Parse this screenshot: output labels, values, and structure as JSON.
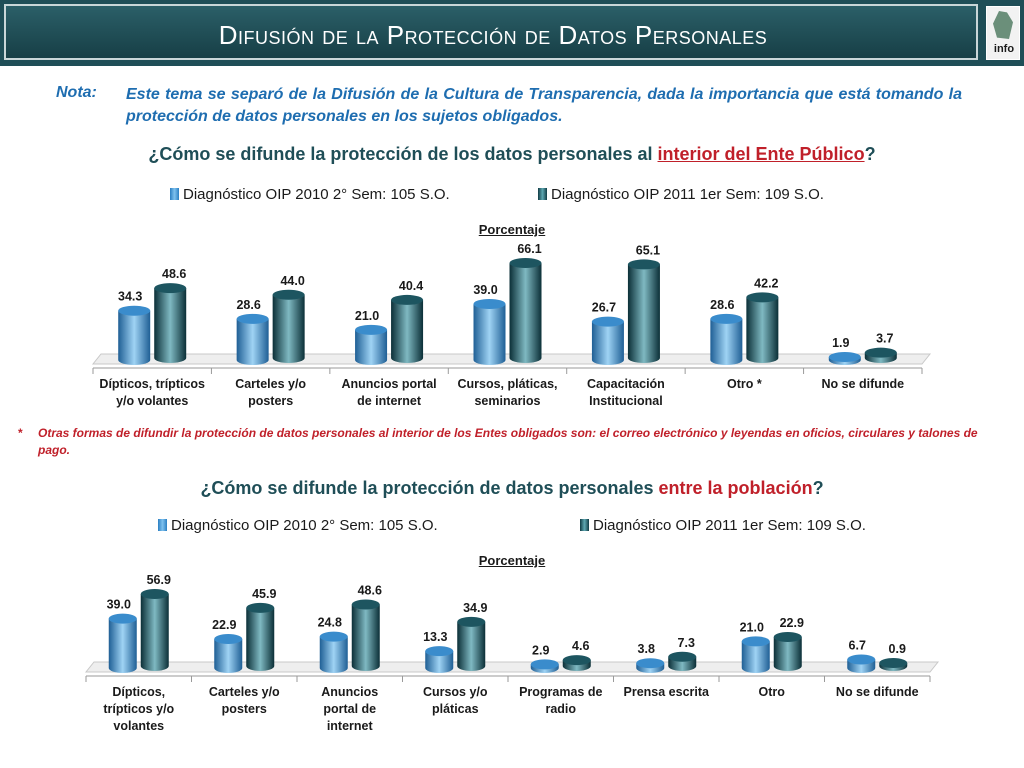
{
  "header": {
    "title": "Difusión de la Protección de Datos Personales",
    "logo_text": "info",
    "logo_icon": "info-df-logo"
  },
  "note": {
    "label": "Nota:",
    "text": "Este tema se separó de la Difusión de la Cultura de Transparencia, dada la importancia que está tomando la protección de datos personales en los sujetos obligados."
  },
  "chart1_question": {
    "before": "¿Cómo se difunde la protección de los datos personales al ",
    "highlight": "interior del Ente Público",
    "after": "?"
  },
  "chart2_question": {
    "before": "¿Cómo se difunde la protección de datos personales ",
    "highlight": "entre la población",
    "after": "?"
  },
  "footnote": {
    "star": "*",
    "text": "Otras formas de difundir la protección de datos personales al interior de los Entes obligados son: el correo electrónico y leyendas en oficios, circulares y talones de pago."
  },
  "colors": {
    "series1": "#2b7fc2",
    "series2": "#0f3b44",
    "title_bg": "#1f4e57",
    "highlight": "#c0202a",
    "note": "#1e6db0"
  },
  "chart_data": [
    {
      "type": "bar",
      "ylabel": "Porcentaje",
      "legend_position": "top",
      "categories": [
        [
          "Dípticos, trípticos",
          "y/o volantes"
        ],
        [
          "Carteles y/o",
          "posters"
        ],
        [
          "Anuncios portal",
          "de internet"
        ],
        [
          "Cursos, pláticas,",
          "seminarios"
        ],
        [
          "Capacitación",
          "Institucional"
        ],
        [
          "Otro *"
        ],
        [
          "No se difunde"
        ]
      ],
      "series": [
        {
          "name": "Diagnóstico OIP 2010 2° Sem: 105 S.O.",
          "values": [
            34.3,
            28.6,
            21.0,
            39.0,
            26.7,
            28.6,
            1.9
          ]
        },
        {
          "name": "Diagnóstico OIP 2011 1er Sem: 109 S.O.",
          "values": [
            48.6,
            44.0,
            40.4,
            66.1,
            65.1,
            42.2,
            3.7
          ]
        }
      ]
    },
    {
      "type": "bar",
      "ylabel": "Porcentaje",
      "legend_position": "top",
      "categories": [
        [
          "Dípticos,",
          "trípticos y/o",
          "volantes"
        ],
        [
          "Carteles y/o",
          "posters"
        ],
        [
          "Anuncios",
          "portal de",
          "internet"
        ],
        [
          "Cursos y/o",
          "pláticas"
        ],
        [
          "Programas de",
          "radio"
        ],
        [
          "Prensa escrita"
        ],
        [
          "Otro"
        ],
        [
          "No se difunde"
        ]
      ],
      "series": [
        {
          "name": "Diagnóstico OIP 2010 2° Sem: 105 S.O.",
          "values": [
            39.0,
            22.9,
            24.8,
            13.3,
            2.9,
            3.8,
            21.0,
            6.7
          ]
        },
        {
          "name": "Diagnóstico OIP 2011 1er Sem: 109 S.O.",
          "values": [
            56.9,
            45.9,
            48.6,
            34.9,
            4.6,
            7.3,
            22.9,
            0.9
          ]
        }
      ]
    }
  ]
}
